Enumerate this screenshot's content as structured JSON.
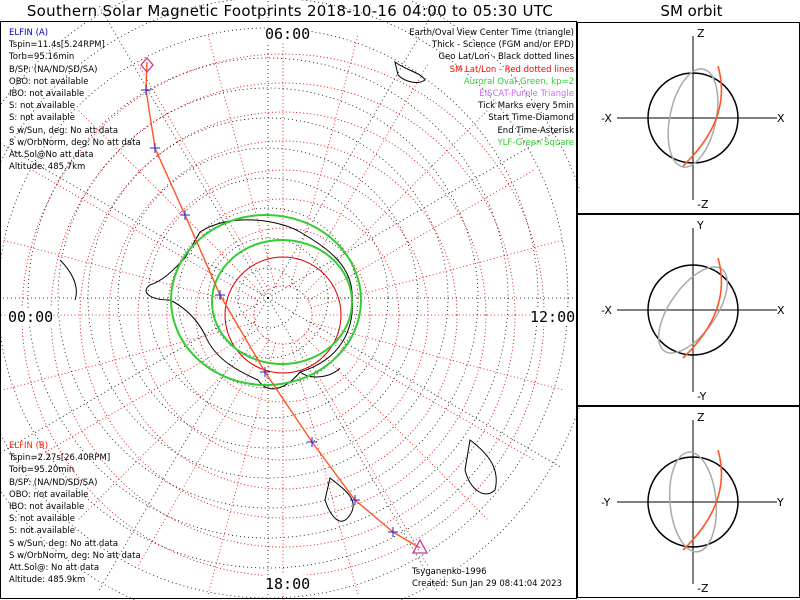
{
  "title": "Southern Solar Magnetic Footprints 2018-10-16 04:00 to 05:30 UTC",
  "orbit_title": "SM orbit",
  "mlt_labels": {
    "top": "06:00",
    "left": "00:00",
    "right": "12:00",
    "bottom": "18:00"
  },
  "sat_a": {
    "name": "ELFIN (A)",
    "color": "#0000cc",
    "lines": [
      "Tspin=11.4s[5.24RPM]",
      "Torb=95.16min",
      "B/SP: (NA/ND/SD/SA)",
      "OBO: not available",
      "IBO: not available",
      "S: not available",
      "S: not available",
      "S w/Sun, deg: No att data",
      "S w/OrbNorm, deg: No att data",
      "Att.Sol@No att data",
      "Altitude: 485.7km"
    ]
  },
  "sat_b": {
    "name": "ELFIN (B)",
    "color": "#ff2200",
    "lines": [
      "Tspin=2.27s[26.40RPM]",
      "Torb=95.20min",
      "B/SP: (NA/ND/SD/SA)",
      "OBO: not available",
      "IBO: not available",
      "S: not available",
      "S: not available",
      "S w/Sun, deg: No att data",
      "S w/OrbNorm, deg: No att data",
      "Att.Sol@: No att data",
      "Altitude: 485.9km"
    ]
  },
  "legend": [
    {
      "text": "Earth/Oval View Center Time (triangle)",
      "color": "#000000"
    },
    {
      "text": "Thick - Science (FGM and/or EPD)",
      "color": "#000000"
    },
    {
      "text": "Geo Lat/Lon - Black dotted lines",
      "color": "#000000"
    },
    {
      "text": "SM Lat/Lon - Red dotted lines",
      "color": "#ff0000"
    },
    {
      "text": "Auroral Oval-Green, kp=2",
      "color": "#33cc33"
    },
    {
      "text": "EISCAT-Purple Triangle",
      "color": "#cc66ff"
    },
    {
      "text": "Tick Marks every 5min",
      "color": "#000000"
    },
    {
      "text": "Start Time-Diamond",
      "color": "#000000"
    },
    {
      "text": "End Time-Asterisk",
      "color": "#000000"
    },
    {
      "text": "YLF-Green Square",
      "color": "#33cc33"
    }
  ],
  "footer": {
    "model": "Tsyganenko-1996",
    "created": "Created: Sun Jan 29 08:41:04 2023"
  },
  "orbit_panels": [
    {
      "top": "Z",
      "bottom": "-Z",
      "left": "-X",
      "right": "X"
    },
    {
      "top": "Y",
      "bottom": "-Y",
      "left": "-X",
      "right": "X"
    },
    {
      "top": "Z",
      "bottom": "-Z",
      "left": "-Y",
      "right": "Y"
    }
  ],
  "colors": {
    "track": "#ff5522",
    "sm_grid": "#dd0000",
    "oval": "#33cc33",
    "tick": "#2222cc",
    "marker": "#cc3399"
  },
  "chart_data": {
    "type": "polar-map",
    "projection": "southern polar, SM coordinates",
    "mlt_ticks": [
      "06:00",
      "00:00",
      "12:00",
      "18:00"
    ],
    "track_description": "ELFIN A and ELFIN B footprints from 04:00 to 05:30 UTC",
    "tick_interval_min": 5
  }
}
